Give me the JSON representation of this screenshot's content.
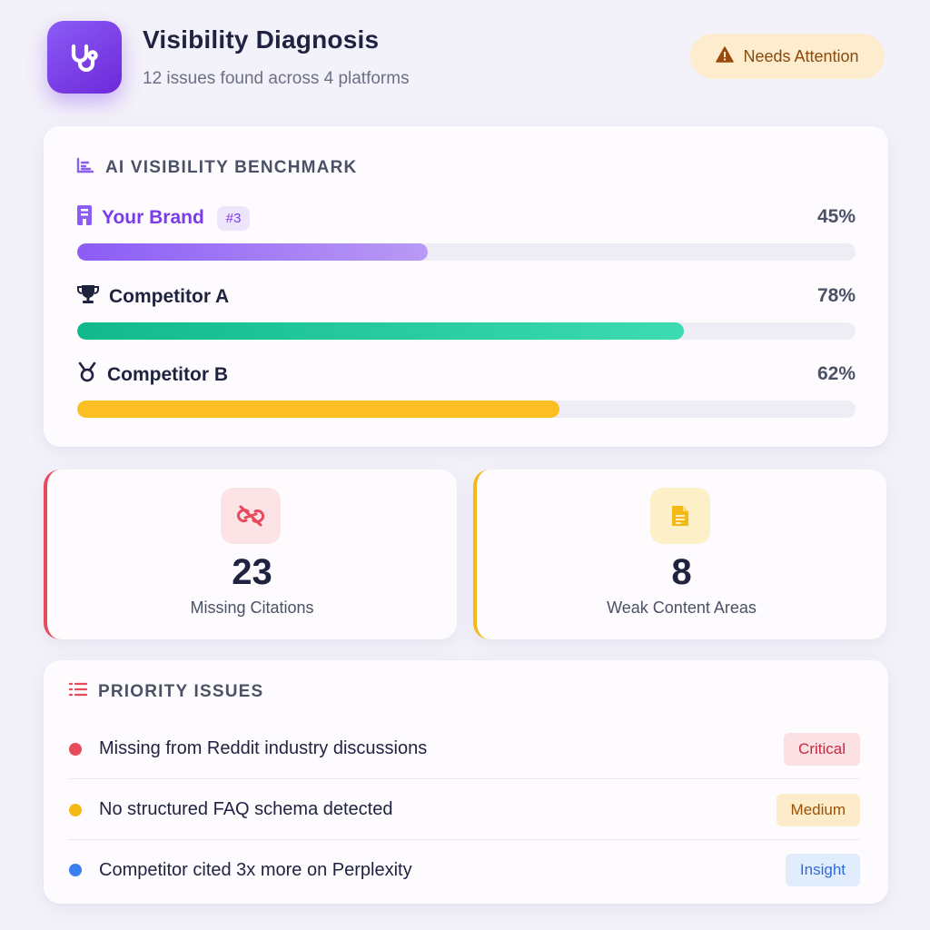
{
  "header": {
    "app_icon": "stethoscope-icon",
    "title": "Visibility Diagnosis",
    "subtitle": "12 issues found across 4 platforms",
    "status": {
      "icon": "warning-icon",
      "label": "Needs Attention"
    }
  },
  "benchmark": {
    "heading": "AI VISIBILITY BENCHMARK",
    "heading_icon": "bar-chart-icon",
    "rows": [
      {
        "name": "Your Brand",
        "icon": "building-icon",
        "rank": "#3",
        "value_label": "45%",
        "value": 45,
        "color": "#8b5cf6"
      },
      {
        "name": "Competitor A",
        "icon": "trophy-icon",
        "value_label": "78%",
        "value": 78,
        "color": "#10b98c"
      },
      {
        "name": "Competitor B",
        "icon": "medal-icon",
        "value_label": "62%",
        "value": 62,
        "color": "#fbbf24"
      }
    ]
  },
  "stats": [
    {
      "icon": "broken-link-icon",
      "value": "23",
      "label": "Missing Citations",
      "color": "#e64a5c"
    },
    {
      "icon": "document-icon",
      "value": "8",
      "label": "Weak Content Areas",
      "color": "#f5b916"
    }
  ],
  "issues": {
    "heading": "PRIORITY ISSUES",
    "heading_icon": "list-icon",
    "items": [
      {
        "text": "Missing from Reddit industry discussions",
        "tag": "Critical",
        "dot_color": "#e64a5c"
      },
      {
        "text": "No structured FAQ schema detected",
        "tag": "Medium",
        "dot_color": "#f5b916"
      },
      {
        "text": "Competitor cited 3x more on Perplexity",
        "tag": "Insight",
        "dot_color": "#3b7ff0"
      }
    ]
  }
}
